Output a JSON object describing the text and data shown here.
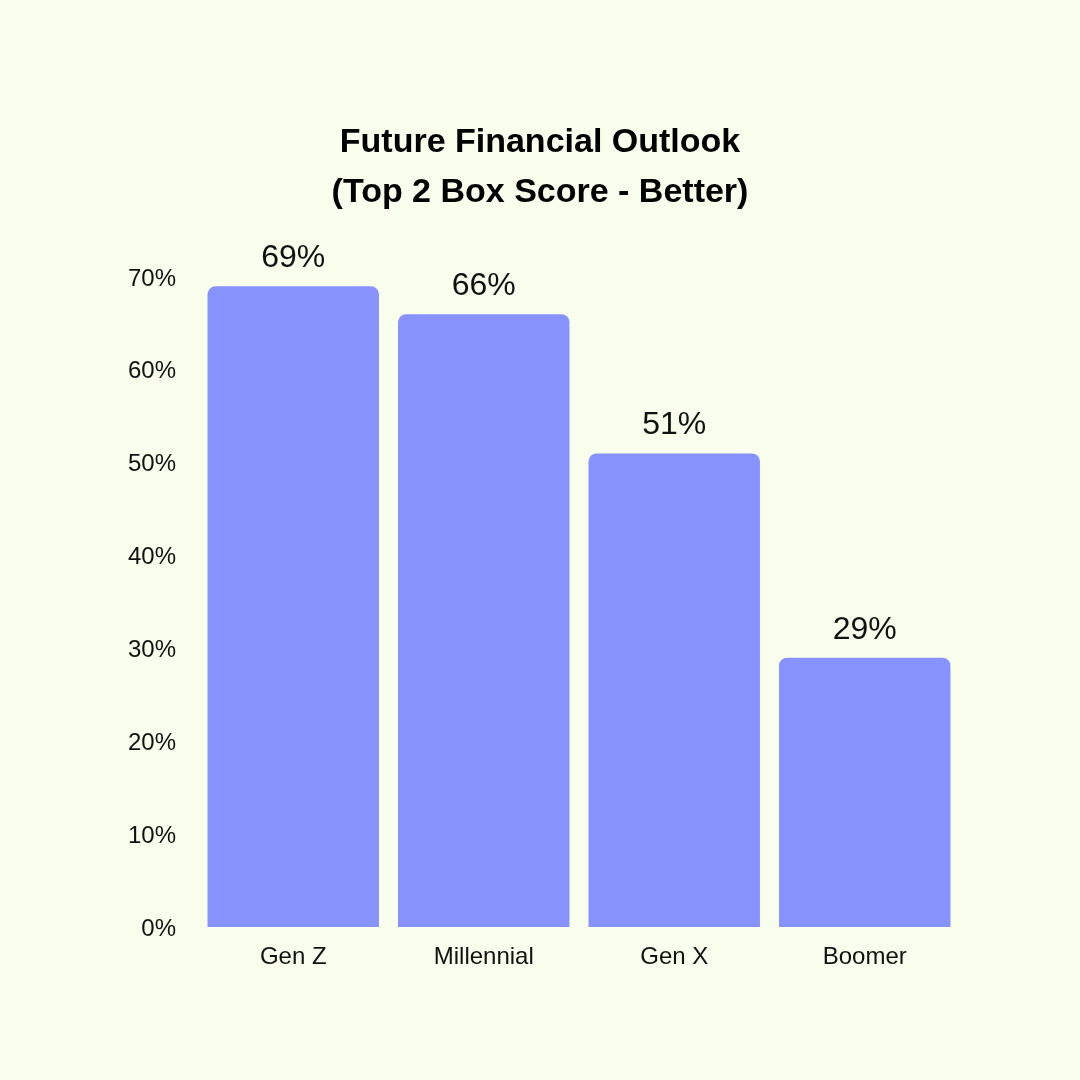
{
  "chart_data": {
    "type": "bar",
    "title": "Future Financial Outlook\n(Top 2 Box Score - Better)",
    "categories": [
      "Gen Z",
      "Millennial",
      "Gen X",
      "Boomer"
    ],
    "values": [
      69,
      66,
      51,
      29
    ],
    "value_labels": [
      "69%",
      "66%",
      "51%",
      "29%"
    ],
    "color": "#8892fd",
    "ylim": [
      0,
      70
    ],
    "yticks": [
      {
        "value": 0,
        "label": "0%"
      },
      {
        "value": 10,
        "label": "10%"
      },
      {
        "value": 20,
        "label": "20%"
      },
      {
        "value": 30,
        "label": "30%"
      },
      {
        "value": 40,
        "label": "40%"
      },
      {
        "value": 50,
        "label": "50%"
      },
      {
        "value": 60,
        "label": "60%"
      },
      {
        "value": 70,
        "label": "70%"
      }
    ],
    "grid": false
  }
}
